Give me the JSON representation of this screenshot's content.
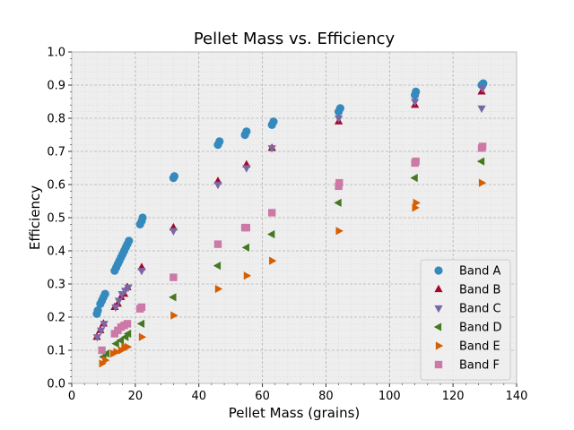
{
  "chart_data": {
    "type": "scatter",
    "title": "Pellet Mass vs. Efficiency",
    "xlabel": "Pellet Mass (grains)",
    "ylabel": "Efficiency",
    "xlim": [
      0,
      140
    ],
    "ylim": [
      0.0,
      1.0
    ],
    "xticks": [
      "0",
      "20",
      "40",
      "60",
      "80",
      "100",
      "120",
      "140"
    ],
    "yticks": [
      "0.0",
      "0.1",
      "0.2",
      "0.3",
      "0.4",
      "0.5",
      "0.6",
      "0.7",
      "0.8",
      "0.9",
      "1.0"
    ],
    "grid": true,
    "legend_position": "bottom-right",
    "series": [
      {
        "name": "Band A",
        "marker": "circle",
        "color": "#348ABD",
        "points": [
          [
            7.9,
            0.21
          ],
          [
            8.2,
            0.22
          ],
          [
            9.0,
            0.24
          ],
          [
            9.5,
            0.25
          ],
          [
            10.0,
            0.26
          ],
          [
            10.5,
            0.27
          ],
          [
            13.5,
            0.34
          ],
          [
            14.0,
            0.35
          ],
          [
            14.5,
            0.36
          ],
          [
            15.0,
            0.37
          ],
          [
            15.5,
            0.38
          ],
          [
            16.0,
            0.39
          ],
          [
            16.5,
            0.4
          ],
          [
            17.0,
            0.41
          ],
          [
            17.5,
            0.42
          ],
          [
            18.0,
            0.43
          ],
          [
            21.5,
            0.48
          ],
          [
            22.0,
            0.49
          ],
          [
            22.3,
            0.5
          ],
          [
            32.0,
            0.62
          ],
          [
            32.3,
            0.625
          ],
          [
            46.0,
            0.72
          ],
          [
            46.5,
            0.73
          ],
          [
            54.5,
            0.75
          ],
          [
            55.0,
            0.76
          ],
          [
            63.0,
            0.78
          ],
          [
            63.5,
            0.79
          ],
          [
            84.0,
            0.82
          ],
          [
            84.5,
            0.83
          ],
          [
            108.0,
            0.87
          ],
          [
            108.3,
            0.88
          ],
          [
            129.0,
            0.9
          ],
          [
            129.5,
            0.905
          ]
        ]
      },
      {
        "name": "Band B",
        "marker": "triangle-up",
        "color": "#A60628",
        "points": [
          [
            7.9,
            0.14
          ],
          [
            9.0,
            0.16
          ],
          [
            10.0,
            0.18
          ],
          [
            13.5,
            0.23
          ],
          [
            14.5,
            0.24
          ],
          [
            15.5,
            0.26
          ],
          [
            16.5,
            0.27
          ],
          [
            17.5,
            0.29
          ],
          [
            22.0,
            0.35
          ],
          [
            32.0,
            0.47
          ],
          [
            46.0,
            0.61
          ],
          [
            55.0,
            0.66
          ],
          [
            63.0,
            0.71
          ],
          [
            84.0,
            0.79
          ],
          [
            108.0,
            0.84
          ],
          [
            129.0,
            0.88
          ]
        ]
      },
      {
        "name": "Band C",
        "marker": "triangle-down",
        "color": "#7A68A6",
        "points": [
          [
            8.0,
            0.14
          ],
          [
            9.2,
            0.16
          ],
          [
            10.2,
            0.18
          ],
          [
            13.8,
            0.23
          ],
          [
            14.8,
            0.25
          ],
          [
            15.8,
            0.27
          ],
          [
            16.8,
            0.28
          ],
          [
            17.8,
            0.29
          ],
          [
            22.0,
            0.34
          ],
          [
            32.0,
            0.46
          ],
          [
            46.0,
            0.6
          ],
          [
            55.0,
            0.65
          ],
          [
            63.0,
            0.71
          ],
          [
            84.0,
            0.8
          ],
          [
            108.0,
            0.85
          ],
          [
            129.0,
            0.83
          ],
          [
            129.3,
            0.89
          ]
        ]
      },
      {
        "name": "Band D",
        "marker": "triangle-left",
        "color": "#467821",
        "points": [
          [
            10.0,
            0.08
          ],
          [
            11.0,
            0.09
          ],
          [
            14.0,
            0.12
          ],
          [
            15.5,
            0.13
          ],
          [
            17.0,
            0.14
          ],
          [
            17.8,
            0.15
          ],
          [
            22.0,
            0.18
          ],
          [
            32.0,
            0.26
          ],
          [
            46.0,
            0.355
          ],
          [
            55.0,
            0.41
          ],
          [
            63.0,
            0.45
          ],
          [
            84.0,
            0.545
          ],
          [
            108.0,
            0.62
          ],
          [
            129.0,
            0.67
          ]
        ]
      },
      {
        "name": "Band E",
        "marker": "triangle-right",
        "color": "#D55E00",
        "points": [
          [
            9.5,
            0.06
          ],
          [
            10.5,
            0.07
          ],
          [
            13.0,
            0.09
          ],
          [
            14.0,
            0.095
          ],
          [
            15.5,
            0.1
          ],
          [
            16.5,
            0.11
          ],
          [
            17.5,
            0.11
          ],
          [
            22.0,
            0.14
          ],
          [
            32.0,
            0.205
          ],
          [
            46.0,
            0.285
          ],
          [
            55.0,
            0.325
          ],
          [
            63.0,
            0.37
          ],
          [
            84.0,
            0.46
          ],
          [
            108.0,
            0.53
          ],
          [
            108.3,
            0.545
          ],
          [
            129.0,
            0.605
          ]
        ]
      },
      {
        "name": "Band F",
        "marker": "square",
        "color": "#CC79A7",
        "points": [
          [
            9.5,
            0.1
          ],
          [
            13.5,
            0.15
          ],
          [
            14.5,
            0.16
          ],
          [
            15.5,
            0.17
          ],
          [
            16.5,
            0.175
          ],
          [
            17.5,
            0.18
          ],
          [
            21.5,
            0.225
          ],
          [
            22.0,
            0.23
          ],
          [
            32.0,
            0.32
          ],
          [
            46.0,
            0.42
          ],
          [
            54.5,
            0.47
          ],
          [
            55.0,
            0.47
          ],
          [
            63.0,
            0.515
          ],
          [
            84.0,
            0.595
          ],
          [
            84.2,
            0.605
          ],
          [
            108.0,
            0.665
          ],
          [
            108.3,
            0.67
          ],
          [
            129.0,
            0.71
          ],
          [
            129.3,
            0.715
          ]
        ]
      }
    ]
  }
}
